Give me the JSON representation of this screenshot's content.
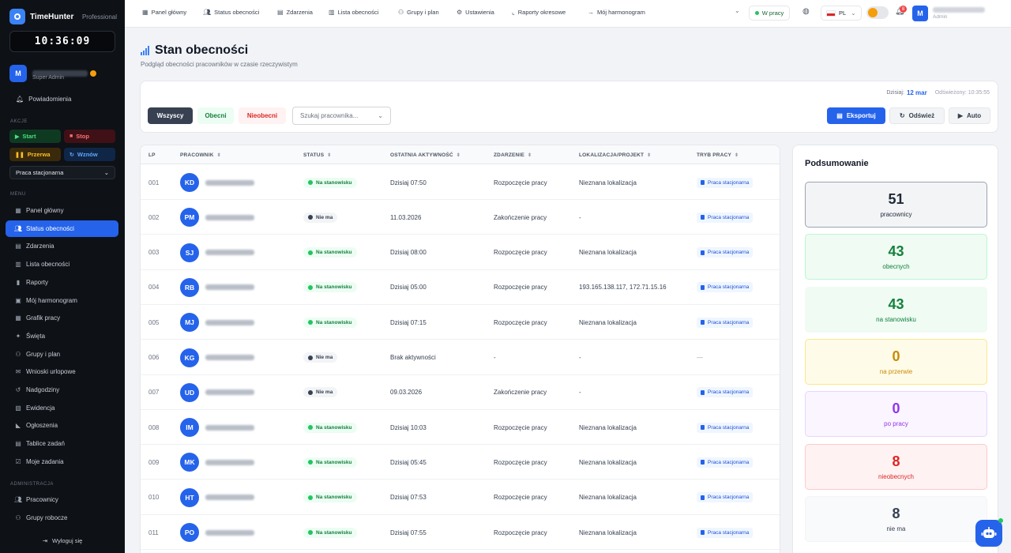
{
  "sidebar": {
    "brand": "TimeHunter",
    "plan": "Professional",
    "clock": "10:36:09",
    "user_initial": "M",
    "user_role": "Super Admin",
    "notifications": "Powiadomienia",
    "actions_title": "AKCJE",
    "actions": {
      "start": "Start",
      "stop": "Stop",
      "pause": "Przerwa",
      "resume": "Wznów"
    },
    "work_mode": "Praca stacjonarna",
    "menu_title": "MENU",
    "menu": [
      {
        "label": "Panel główny",
        "icon": "grid-icon"
      },
      {
        "label": "Status obecności",
        "icon": "users-icon"
      },
      {
        "label": "Zdarzenia",
        "icon": "file-icon"
      },
      {
        "label": "Lista obecności",
        "icon": "document-icon"
      },
      {
        "label": "Raporty",
        "icon": "report-icon"
      },
      {
        "label": "Mój harmonogram",
        "icon": "calendar-icon"
      },
      {
        "label": "Grafik pracy",
        "icon": "schedule-icon"
      },
      {
        "label": "Święta",
        "icon": "holiday-icon"
      },
      {
        "label": "Grupy i plan",
        "icon": "group-icon"
      },
      {
        "label": "Wnioski urlopowe",
        "icon": "leave-icon"
      },
      {
        "label": "Nadgodziny",
        "icon": "history-icon"
      },
      {
        "label": "Ewidencja",
        "icon": "ledger-icon"
      },
      {
        "label": "Ogłoszenia",
        "icon": "megaphone-icon"
      },
      {
        "label": "Tablice zadań",
        "icon": "board-icon"
      },
      {
        "label": "Moje zadania",
        "icon": "tasks-icon"
      }
    ],
    "admin_title": "ADMINISTRACJA",
    "admin": [
      {
        "label": "Pracownicy",
        "icon": "users-icon"
      },
      {
        "label": "Grupy robocze",
        "icon": "group-icon"
      }
    ],
    "logout": "Wyloguj się"
  },
  "topbar": {
    "nav": [
      {
        "label": "Panel główny"
      },
      {
        "label": "Status obecności"
      },
      {
        "label": "Zdarzenia"
      },
      {
        "label": "Lista obecności"
      },
      {
        "label": "Grupy i plan"
      },
      {
        "label": "Ustawienia"
      },
      {
        "label": "Raporty okresowe"
      },
      {
        "label": "Mój harmonogram"
      }
    ],
    "status": "W pracy",
    "lang": "PL",
    "notif_count": "8",
    "user_initial": "M",
    "user_role": "Admin"
  },
  "page": {
    "title": "Stan obecności",
    "subtitle": "Podgląd obecności pracowników w czasie rzeczywistym"
  },
  "filters": {
    "date_label": "Dzisiaj:",
    "date_value": "12 mar",
    "refreshed": "Odświeżony: 10:35:55",
    "all": "Wszyscy",
    "present": "Obecni",
    "absent": "Nieobecni",
    "search_placeholder": "Szukaj pracownika...",
    "export": "Eksportuj",
    "refresh": "Odśwież",
    "auto": "Auto"
  },
  "table": {
    "headers": [
      "LP",
      "PRACOWNIK",
      "STATUS",
      "OSTATNIA AKTYWNOŚĆ",
      "ZDARZENIE",
      "LOKALIZACJA/PROJEKT",
      "TRYB PRACY"
    ],
    "rows": [
      {
        "lp": "001",
        "initials": "KD",
        "status": "Na stanowisku",
        "state": "on",
        "activity": "Dzisiaj 07:50",
        "event": "Rozpoczęcie pracy",
        "location": "Nieznana lokalizacja",
        "mode": "Praca stacjonarna"
      },
      {
        "lp": "002",
        "initials": "PM",
        "status": "Nie ma",
        "state": "off",
        "activity": "11.03.2026",
        "event": "Zakończenie pracy",
        "location": "-",
        "mode": "Praca stacjonarna"
      },
      {
        "lp": "003",
        "initials": "SJ",
        "status": "Na stanowisku",
        "state": "on",
        "activity": "Dzisiaj 08:00",
        "event": "Rozpoczęcie pracy",
        "location": "Nieznana lokalizacja",
        "mode": "Praca stacjonarna"
      },
      {
        "lp": "004",
        "initials": "RB",
        "status": "Na stanowisku",
        "state": "on",
        "activity": "Dzisiaj 05:00",
        "event": "Rozpoczęcie pracy",
        "location": "193.165.138.117, 172.71.15.16",
        "mode": "Praca stacjonarna"
      },
      {
        "lp": "005",
        "initials": "MJ",
        "status": "Na stanowisku",
        "state": "on",
        "activity": "Dzisiaj 07:15",
        "event": "Rozpoczęcie pracy",
        "location": "Nieznana lokalizacja",
        "mode": "Praca stacjonarna"
      },
      {
        "lp": "006",
        "initials": "KG",
        "status": "Nie ma",
        "state": "off",
        "activity": "Brak aktywności",
        "event": "-",
        "location": "-",
        "mode": "—"
      },
      {
        "lp": "007",
        "initials": "UD",
        "status": "Nie ma",
        "state": "off",
        "activity": "09.03.2026",
        "event": "Zakończenie pracy",
        "location": "-",
        "mode": "Praca stacjonarna"
      },
      {
        "lp": "008",
        "initials": "IM",
        "status": "Na stanowisku",
        "state": "on",
        "activity": "Dzisiaj 10:03",
        "event": "Rozpoczęcie pracy",
        "location": "Nieznana lokalizacja",
        "mode": "Praca stacjonarna"
      },
      {
        "lp": "009",
        "initials": "MK",
        "status": "Na stanowisku",
        "state": "on",
        "activity": "Dzisiaj 05:45",
        "event": "Rozpoczęcie pracy",
        "location": "Nieznana lokalizacja",
        "mode": "Praca stacjonarna"
      },
      {
        "lp": "010",
        "initials": "HT",
        "status": "Na stanowisku",
        "state": "on",
        "activity": "Dzisiaj 07:53",
        "event": "Rozpoczęcie pracy",
        "location": "Nieznana lokalizacja",
        "mode": "Praca stacjonarna"
      },
      {
        "lp": "011",
        "initials": "PO",
        "status": "Na stanowisku",
        "state": "on",
        "activity": "Dzisiaj 07:55",
        "event": "Rozpoczęcie pracy",
        "location": "Nieznana lokalizacja",
        "mode": "Praca stacjonarna"
      }
    ]
  },
  "summary": {
    "title": "Podsumowanie",
    "stats": [
      {
        "value": "51",
        "label": "pracownicy",
        "color": "#1f2937",
        "bg": "#f3f4f6",
        "border": "#9ca3af"
      },
      {
        "value": "43",
        "label": "obecnych",
        "color": "#15803d",
        "bg": "#effbf3",
        "border": "#bbf7d0"
      },
      {
        "value": "43",
        "label": "na stanowisku",
        "color": "#15803d",
        "bg": "#effbf3",
        "border": "#effbf3"
      },
      {
        "value": "0",
        "label": "na przerwie",
        "color": "#ca8a04",
        "bg": "#fefbe8",
        "border": "#fde68a"
      },
      {
        "value": "0",
        "label": "po pracy",
        "color": "#9333ea",
        "bg": "#faf5ff",
        "border": "#e9d5ff"
      },
      {
        "value": "8",
        "label": "nieobecnych",
        "color": "#dc2626",
        "bg": "#fef2f2",
        "border": "#fecaca"
      },
      {
        "value": "8",
        "label": "nie ma",
        "color": "#374151",
        "bg": "#f9fafb",
        "border": "#f3f4f6"
      }
    ]
  },
  "colors": {
    "accent": "#2563eb",
    "sidebar": "#0e1116",
    "present": "#22c55e",
    "absent": "#374151"
  }
}
